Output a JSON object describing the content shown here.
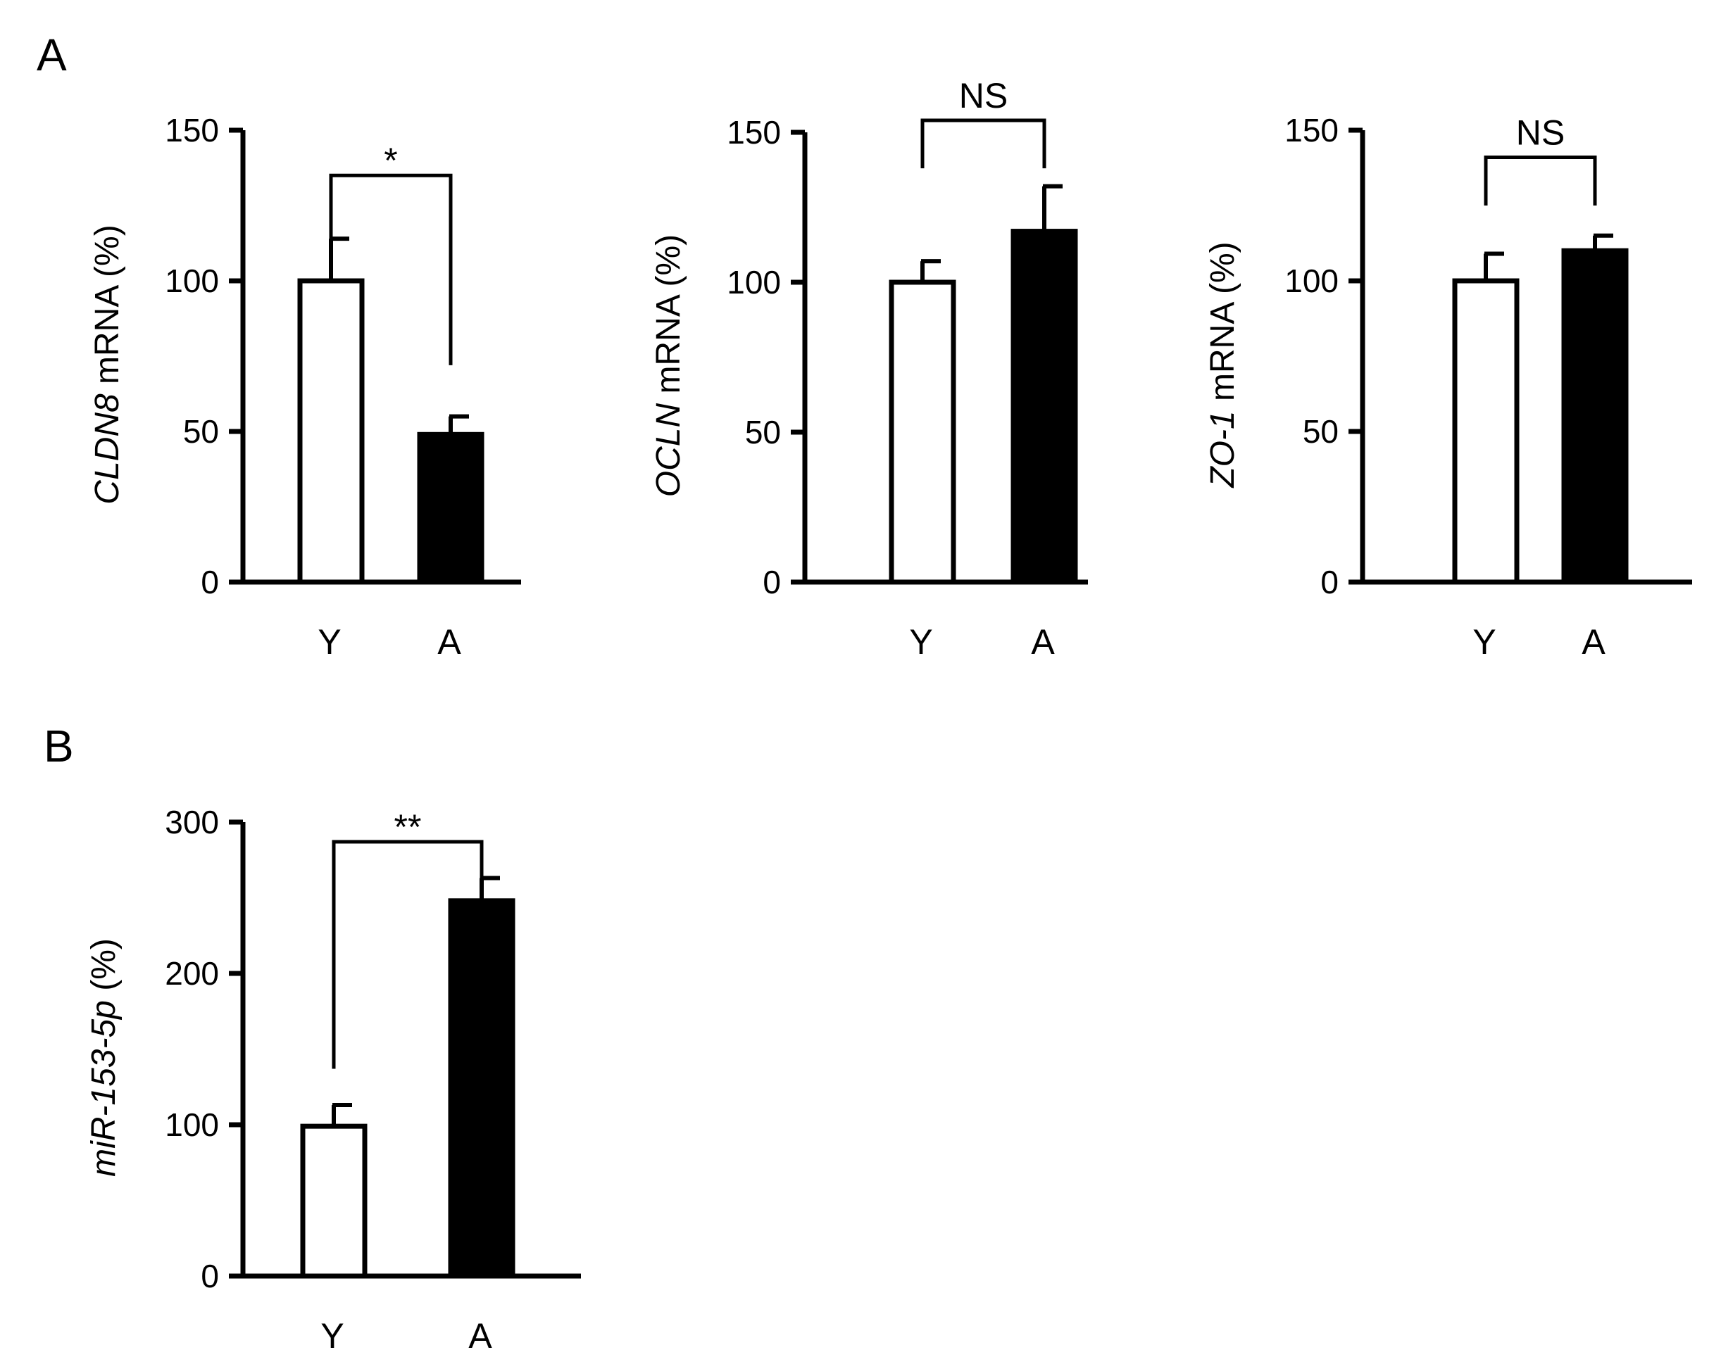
{
  "panels": [
    {
      "letter": "A"
    },
    {
      "letter": "B"
    }
  ],
  "chart_data": [
    {
      "type": "bar",
      "panel": "A",
      "categories": [
        "Y",
        "A"
      ],
      "values": [
        100,
        49
      ],
      "errors": [
        14,
        6
      ],
      "colors": [
        "#ffffff",
        "#000000"
      ],
      "ylabel_italic": "CLDN8",
      "ylabel_rest": " mRNA (%)",
      "ylim": [
        0,
        150
      ],
      "yticks": [
        0,
        50,
        100,
        150
      ],
      "significance": "*",
      "bracket_left_top": 113,
      "bracket_right_bottom": 72
    },
    {
      "type": "bar",
      "panel": "A",
      "categories": [
        "Y",
        "A"
      ],
      "values": [
        100,
        117
      ],
      "errors": [
        7,
        15
      ],
      "colors": [
        "#ffffff",
        "#000000"
      ],
      "ylabel_italic": "OCLN",
      "ylabel_rest": " mRNA (%)",
      "ylim": [
        0,
        150
      ],
      "yticks": [
        0,
        50,
        100,
        150
      ],
      "significance": "NS",
      "bracket_left_top": 138,
      "bracket_right_bottom": 138
    },
    {
      "type": "bar",
      "panel": "A",
      "categories": [
        "Y",
        "A"
      ],
      "values": [
        100,
        110
      ],
      "errors": [
        9,
        5
      ],
      "colors": [
        "#ffffff",
        "#000000"
      ],
      "ylabel_italic": "ZO-1",
      "ylabel_rest": " mRNA (%)",
      "ylim": [
        0,
        150
      ],
      "yticks": [
        0,
        50,
        100,
        150
      ],
      "significance": "NS",
      "bracket_left_top": 125,
      "bracket_right_bottom": 125
    },
    {
      "type": "bar",
      "panel": "B",
      "categories": [
        "Y",
        "A"
      ],
      "values": [
        99,
        248
      ],
      "errors": [
        14,
        15
      ],
      "colors": [
        "#ffffff",
        "#000000"
      ],
      "ylabel_italic": "miR-153-5p",
      "ylabel_rest": " (%)",
      "ylim": [
        0,
        300
      ],
      "yticks": [
        0,
        100,
        200,
        300
      ],
      "significance": "**",
      "bracket_left_top": 137,
      "bracket_right_bottom": 262
    }
  ]
}
